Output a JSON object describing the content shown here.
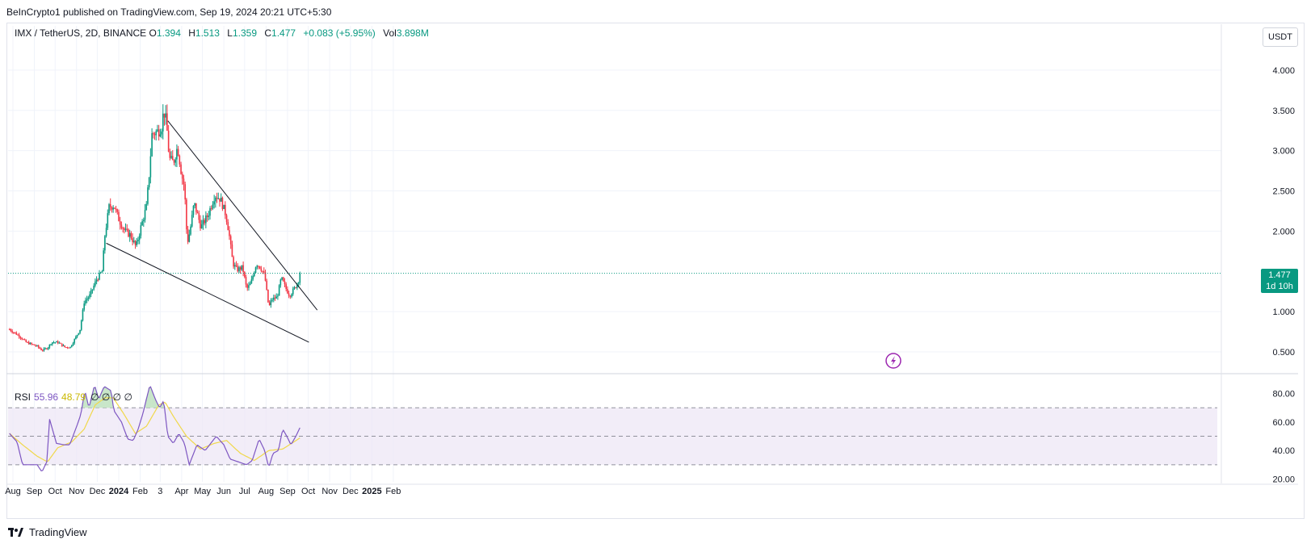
{
  "header": {
    "published": "BeInCrypto1 published on TradingView.com, Sep 19, 2024 20:21 UTC+5:30"
  },
  "legend": {
    "symbol": "IMX / TetherUS, 2D, BINANCE",
    "o_label": "O",
    "o": "1.394",
    "h_label": "H",
    "h": "1.513",
    "l_label": "L",
    "l": "1.359",
    "c_label": "C",
    "c": "1.477",
    "change": "+0.083 (+5.95%)",
    "vol_label": "Vol",
    "vol": "3.898M"
  },
  "currency_button": "USDT",
  "price_tag": {
    "price": "1.477",
    "countdown": "1d 10h"
  },
  "rsi_legend": {
    "label": "RSI",
    "rsi": "55.96",
    "ma": "48.79",
    "zeros": "∅ ∅ ∅ ∅"
  },
  "brand": "TradingView",
  "colors": {
    "up": "#089981",
    "down": "#f23645",
    "rsi": "#7e57c2",
    "rsi_ma": "#f0d84a",
    "band": "#ede7f6",
    "lightning": "#9c27b0"
  },
  "chart_data": [
    {
      "type": "candlestick",
      "price_axis_ticks": [
        "4.000",
        "3.500",
        "3.000",
        "2.500",
        "2.000",
        "1.000",
        "0.500"
      ],
      "ylim": [
        0.26,
        4.55
      ],
      "x_axis_labels": [
        "Aug",
        "Sep",
        "Oct",
        "Nov",
        "Dec",
        "2024",
        "Feb",
        "3",
        "Apr",
        "May",
        "Jun",
        "Jul",
        "Aug",
        "Sep",
        "Oct",
        "Nov",
        "Dec",
        "2025",
        "Feb"
      ],
      "last_price": 1.477,
      "anchors": [
        {
          "date": "2023-07-27",
          "close": 0.78
        },
        {
          "date": "2023-08-10",
          "close": 0.7
        },
        {
          "date": "2023-08-20",
          "close": 0.62
        },
        {
          "date": "2023-09-05",
          "close": 0.57
        },
        {
          "date": "2023-09-12",
          "close": 0.52
        },
        {
          "date": "2023-09-20",
          "close": 0.55
        },
        {
          "date": "2023-09-26",
          "close": 0.62
        },
        {
          "date": "2023-10-05",
          "close": 0.62
        },
        {
          "date": "2023-10-15",
          "close": 0.56
        },
        {
          "date": "2023-10-23",
          "close": 0.56
        },
        {
          "date": "2023-11-01",
          "close": 0.7
        },
        {
          "date": "2023-11-06",
          "close": 0.78
        },
        {
          "date": "2023-11-12",
          "close": 1.12
        },
        {
          "date": "2023-11-20",
          "close": 1.2
        },
        {
          "date": "2023-11-30",
          "close": 1.4
        },
        {
          "date": "2023-12-08",
          "close": 1.5
        },
        {
          "date": "2023-12-12",
          "close": 1.95
        },
        {
          "date": "2023-12-18",
          "close": 2.3
        },
        {
          "date": "2023-12-25",
          "close": 2.32
        },
        {
          "date": "2024-01-01",
          "close": 2.15
        },
        {
          "date": "2024-01-10",
          "close": 2.0
        },
        {
          "date": "2024-01-18",
          "close": 1.95
        },
        {
          "date": "2024-01-26",
          "close": 1.8
        },
        {
          "date": "2024-02-02",
          "close": 2.05
        },
        {
          "date": "2024-02-10",
          "close": 2.3
        },
        {
          "date": "2024-02-14",
          "close": 2.7
        },
        {
          "date": "2024-02-18",
          "close": 3.2
        },
        {
          "date": "2024-02-28",
          "close": 3.25
        },
        {
          "date": "2024-03-03",
          "close": 3.3
        },
        {
          "date": "2024-03-06",
          "close": 3.5
        },
        {
          "date": "2024-03-10",
          "close": 3.35
        },
        {
          "date": "2024-03-14",
          "close": 2.9
        },
        {
          "date": "2024-03-20",
          "close": 2.85
        },
        {
          "date": "2024-03-26",
          "close": 3.05
        },
        {
          "date": "2024-04-01",
          "close": 2.7
        },
        {
          "date": "2024-04-05",
          "close": 2.55
        },
        {
          "date": "2024-04-09",
          "close": 1.85
        },
        {
          "date": "2024-04-13",
          "close": 2.0
        },
        {
          "date": "2024-04-19",
          "close": 2.35
        },
        {
          "date": "2024-04-29",
          "close": 2.05
        },
        {
          "date": "2024-05-09",
          "close": 2.2
        },
        {
          "date": "2024-05-19",
          "close": 2.45
        },
        {
          "date": "2024-05-27",
          "close": 2.4
        },
        {
          "date": "2024-06-04",
          "close": 2.2
        },
        {
          "date": "2024-06-08",
          "close": 2.0
        },
        {
          "date": "2024-06-14",
          "close": 1.6
        },
        {
          "date": "2024-06-20",
          "close": 1.52
        },
        {
          "date": "2024-06-28",
          "close": 1.55
        },
        {
          "date": "2024-07-04",
          "close": 1.28
        },
        {
          "date": "2024-07-10",
          "close": 1.35
        },
        {
          "date": "2024-07-18",
          "close": 1.6
        },
        {
          "date": "2024-07-24",
          "close": 1.55
        },
        {
          "date": "2024-07-30",
          "close": 1.45
        },
        {
          "date": "2024-08-05",
          "close": 1.05
        },
        {
          "date": "2024-08-09",
          "close": 1.15
        },
        {
          "date": "2024-08-17",
          "close": 1.18
        },
        {
          "date": "2024-08-23",
          "close": 1.42
        },
        {
          "date": "2024-08-29",
          "close": 1.3
        },
        {
          "date": "2024-09-04",
          "close": 1.2
        },
        {
          "date": "2024-09-12",
          "close": 1.3
        },
        {
          "date": "2024-09-17",
          "close": 1.39
        },
        {
          "date": "2024-09-19",
          "close": 1.477
        }
      ],
      "wedge_upper": [
        {
          "date": "2024-03-12",
          "price": 3.37
        },
        {
          "date": "2024-10-14",
          "price": 1.02
        }
      ],
      "wedge_lower": [
        {
          "date": "2023-12-14",
          "price": 1.85
        },
        {
          "date": "2024-10-02",
          "price": 0.62
        }
      ]
    },
    {
      "type": "line",
      "name": "RSI",
      "ylim": [
        18,
        90
      ],
      "axis_ticks": [
        "80.00",
        "60.00",
        "40.00",
        "20.00"
      ],
      "band": [
        30,
        70
      ],
      "midline": 50,
      "rsi_anchors": [
        {
          "date": "2023-07-27",
          "value": 52
        },
        {
          "date": "2023-08-07",
          "value": 46
        },
        {
          "date": "2023-08-15",
          "value": 30
        },
        {
          "date": "2023-09-05",
          "value": 30
        },
        {
          "date": "2023-09-12",
          "value": 25
        },
        {
          "date": "2023-09-19",
          "value": 32
        },
        {
          "date": "2023-09-23",
          "value": 62
        },
        {
          "date": "2023-10-03",
          "value": 45
        },
        {
          "date": "2023-10-14",
          "value": 44
        },
        {
          "date": "2023-10-22",
          "value": 44
        },
        {
          "date": "2023-11-02",
          "value": 58
        },
        {
          "date": "2023-11-07",
          "value": 65
        },
        {
          "date": "2023-11-13",
          "value": 82
        },
        {
          "date": "2023-11-19",
          "value": 70
        },
        {
          "date": "2023-11-27",
          "value": 86
        },
        {
          "date": "2023-12-03",
          "value": 76
        },
        {
          "date": "2023-12-11",
          "value": 85
        },
        {
          "date": "2023-12-21",
          "value": 82
        },
        {
          "date": "2023-12-25",
          "value": 68
        },
        {
          "date": "2024-01-05",
          "value": 60
        },
        {
          "date": "2024-01-14",
          "value": 48
        },
        {
          "date": "2024-01-22",
          "value": 47
        },
        {
          "date": "2024-01-29",
          "value": 55
        },
        {
          "date": "2024-02-05",
          "value": 66
        },
        {
          "date": "2024-02-15",
          "value": 86
        },
        {
          "date": "2024-02-23",
          "value": 76
        },
        {
          "date": "2024-02-29",
          "value": 70
        },
        {
          "date": "2024-03-06",
          "value": 75
        },
        {
          "date": "2024-03-12",
          "value": 50
        },
        {
          "date": "2024-03-20",
          "value": 45
        },
        {
          "date": "2024-03-28",
          "value": 52
        },
        {
          "date": "2024-04-05",
          "value": 45
        },
        {
          "date": "2024-04-12",
          "value": 30
        },
        {
          "date": "2024-04-23",
          "value": 44
        },
        {
          "date": "2024-05-05",
          "value": 40
        },
        {
          "date": "2024-05-21",
          "value": 50
        },
        {
          "date": "2024-06-01",
          "value": 44
        },
        {
          "date": "2024-06-10",
          "value": 34
        },
        {
          "date": "2024-06-22",
          "value": 32
        },
        {
          "date": "2024-07-04",
          "value": 30
        },
        {
          "date": "2024-07-12",
          "value": 33
        },
        {
          "date": "2024-07-22",
          "value": 48
        },
        {
          "date": "2024-07-30",
          "value": 40
        },
        {
          "date": "2024-08-05",
          "value": 28
        },
        {
          "date": "2024-08-11",
          "value": 38
        },
        {
          "date": "2024-08-19",
          "value": 40
        },
        {
          "date": "2024-08-25",
          "value": 55
        },
        {
          "date": "2024-08-31",
          "value": 50
        },
        {
          "date": "2024-09-06",
          "value": 44
        },
        {
          "date": "2024-09-13",
          "value": 50
        },
        {
          "date": "2024-09-19",
          "value": 55.96
        }
      ],
      "ma_anchors": [
        {
          "date": "2023-07-27",
          "value": 52
        },
        {
          "date": "2023-08-15",
          "value": 44
        },
        {
          "date": "2023-09-05",
          "value": 36
        },
        {
          "date": "2023-09-20",
          "value": 32
        },
        {
          "date": "2023-10-05",
          "value": 42
        },
        {
          "date": "2023-10-25",
          "value": 46
        },
        {
          "date": "2023-11-12",
          "value": 55
        },
        {
          "date": "2023-11-28",
          "value": 72
        },
        {
          "date": "2023-12-12",
          "value": 77
        },
        {
          "date": "2023-12-24",
          "value": 77
        },
        {
          "date": "2024-01-08",
          "value": 66
        },
        {
          "date": "2024-01-25",
          "value": 52
        },
        {
          "date": "2024-02-10",
          "value": 57
        },
        {
          "date": "2024-02-28",
          "value": 72
        },
        {
          "date": "2024-03-08",
          "value": 74
        },
        {
          "date": "2024-03-20",
          "value": 64
        },
        {
          "date": "2024-04-08",
          "value": 50
        },
        {
          "date": "2024-04-28",
          "value": 41
        },
        {
          "date": "2024-05-18",
          "value": 45
        },
        {
          "date": "2024-06-05",
          "value": 47
        },
        {
          "date": "2024-06-25",
          "value": 38
        },
        {
          "date": "2024-07-15",
          "value": 33
        },
        {
          "date": "2024-08-05",
          "value": 40
        },
        {
          "date": "2024-08-25",
          "value": 41
        },
        {
          "date": "2024-09-10",
          "value": 46
        },
        {
          "date": "2024-09-19",
          "value": 48.79
        }
      ]
    }
  ]
}
